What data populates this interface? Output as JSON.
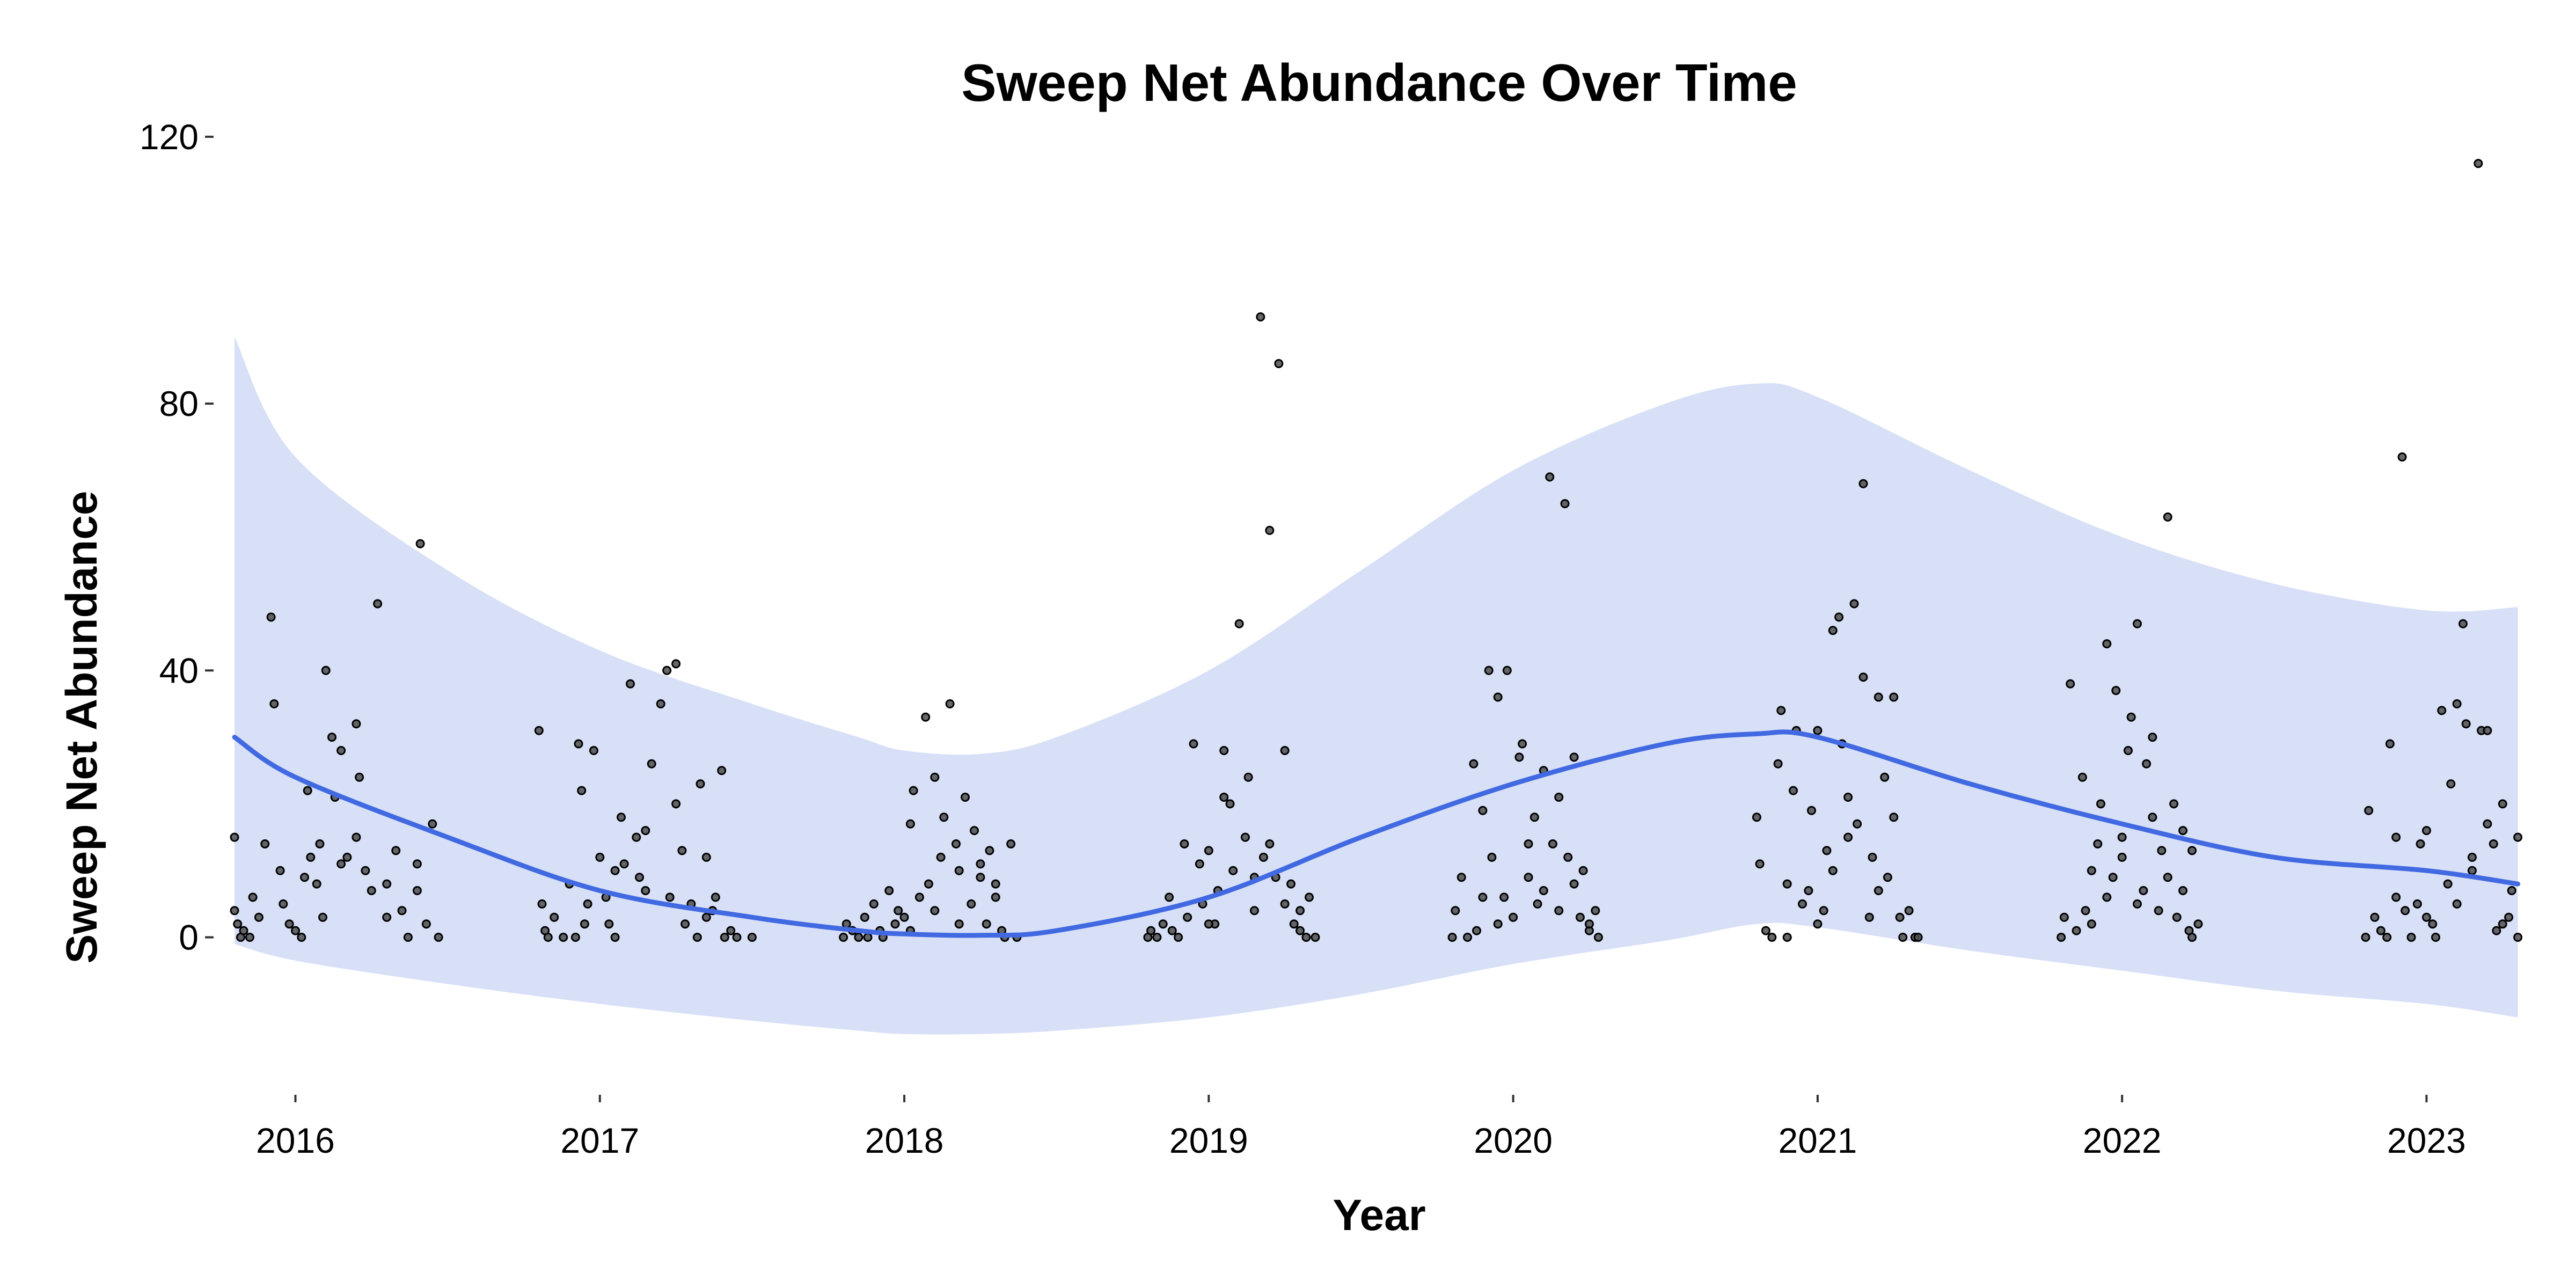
{
  "chart_data": {
    "type": "scatter",
    "title": "Sweep Net Abundance Over Time",
    "xlabel": "Year",
    "ylabel": "Sweep Net Abundance",
    "xlim": [
      2015.77,
      2023.35
    ],
    "ylim": [
      -22,
      122
    ],
    "x_ticks": [
      {
        "value": 2016,
        "label": "2016"
      },
      {
        "value": 2017,
        "label": "2017"
      },
      {
        "value": 2018,
        "label": "2018"
      },
      {
        "value": 2019,
        "label": "2019"
      },
      {
        "value": 2020,
        "label": "2020"
      },
      {
        "value": 2021,
        "label": "2021"
      },
      {
        "value": 2022,
        "label": "2022"
      },
      {
        "value": 2023,
        "label": "2023"
      }
    ],
    "y_ticks": [
      {
        "value": 0,
        "label": "0"
      },
      {
        "value": 40,
        "label": "40"
      },
      {
        "value": 80,
        "label": "80"
      },
      {
        "value": 120,
        "label": "120"
      }
    ],
    "grid": false,
    "legend": "none",
    "colors": {
      "point_fill": "#4d4d4d",
      "point_stroke": "#000000",
      "smooth_line": "#4169e1",
      "ribbon": "#d8e0f7"
    },
    "smooth": {
      "x": [
        2015.8,
        2016.0,
        2016.5,
        2017.0,
        2017.5,
        2017.85,
        2018.0,
        2018.25,
        2018.5,
        2019.0,
        2019.5,
        2020.0,
        2020.5,
        2020.8,
        2021.0,
        2021.5,
        2022.0,
        2022.5,
        2023.0,
        2023.3
      ],
      "y": [
        30,
        24,
        15,
        7,
        3,
        1,
        0.5,
        0.3,
        1,
        6,
        15,
        23,
        29,
        30.5,
        30,
        23,
        17,
        12,
        10,
        8
      ],
      "upper": [
        90,
        72,
        55,
        43,
        35,
        30,
        28,
        27.5,
        30,
        40,
        55,
        70,
        80,
        83,
        81,
        70,
        60,
        53,
        49,
        49.5
      ],
      "lower": [
        -1,
        -3.5,
        -7,
        -10,
        -12.5,
        -14,
        -14.5,
        -14.5,
        -14,
        -12,
        -8.5,
        -4,
        -0.5,
        2,
        1.5,
        -2,
        -5,
        -8,
        -10,
        -12
      ]
    },
    "points": [
      [
        2015.8,
        15
      ],
      [
        2015.8,
        4
      ],
      [
        2015.81,
        2
      ],
      [
        2015.82,
        0
      ],
      [
        2015.83,
        1
      ],
      [
        2015.85,
        0
      ],
      [
        2015.86,
        6
      ],
      [
        2015.88,
        3
      ],
      [
        2015.9,
        14
      ],
      [
        2015.92,
        48
      ],
      [
        2015.93,
        35
      ],
      [
        2015.95,
        10
      ],
      [
        2015.96,
        5
      ],
      [
        2015.98,
        2
      ],
      [
        2016.0,
        1
      ],
      [
        2016.02,
        0
      ],
      [
        2016.04,
        22
      ],
      [
        2016.05,
        12
      ],
      [
        2016.07,
        8
      ],
      [
        2016.08,
        14
      ],
      [
        2016.1,
        40
      ],
      [
        2016.12,
        30
      ],
      [
        2016.13,
        21
      ],
      [
        2016.15,
        28
      ],
      [
        2016.17,
        12
      ],
      [
        2016.2,
        32
      ],
      [
        2016.21,
        24
      ],
      [
        2016.23,
        10
      ],
      [
        2016.27,
        50
      ],
      [
        2016.3,
        8
      ],
      [
        2016.33,
        13
      ],
      [
        2016.35,
        4
      ],
      [
        2016.37,
        0
      ],
      [
        2016.4,
        11
      ],
      [
        2016.41,
        59
      ],
      [
        2016.43,
        2
      ],
      [
        2016.45,
        17
      ],
      [
        2016.47,
        0
      ],
      [
        2016.03,
        9
      ],
      [
        2016.09,
        3
      ],
      [
        2016.15,
        11
      ],
      [
        2016.2,
        15
      ],
      [
        2016.25,
        7
      ],
      [
        2016.3,
        3
      ],
      [
        2016.4,
        7
      ],
      [
        2016.8,
        31
      ],
      [
        2016.81,
        5
      ],
      [
        2016.82,
        1
      ],
      [
        2016.83,
        0
      ],
      [
        2016.85,
        3
      ],
      [
        2016.88,
        0
      ],
      [
        2016.9,
        8
      ],
      [
        2016.92,
        0
      ],
      [
        2016.93,
        29
      ],
      [
        2016.94,
        22
      ],
      [
        2016.96,
        5
      ],
      [
        2016.98,
        28
      ],
      [
        2017.0,
        12
      ],
      [
        2017.02,
        6
      ],
      [
        2017.03,
        2
      ],
      [
        2017.05,
        0
      ],
      [
        2017.07,
        18
      ],
      [
        2017.08,
        11
      ],
      [
        2017.1,
        38
      ],
      [
        2017.12,
        15
      ],
      [
        2017.13,
        9
      ],
      [
        2017.15,
        7
      ],
      [
        2017.17,
        26
      ],
      [
        2017.2,
        35
      ],
      [
        2017.22,
        40
      ],
      [
        2017.23,
        6
      ],
      [
        2017.25,
        41
      ],
      [
        2017.27,
        13
      ],
      [
        2017.28,
        2
      ],
      [
        2017.3,
        5
      ],
      [
        2017.32,
        0
      ],
      [
        2017.33,
        23
      ],
      [
        2017.35,
        12
      ],
      [
        2017.37,
        4
      ],
      [
        2017.38,
        6
      ],
      [
        2017.4,
        25
      ],
      [
        2017.41,
        0
      ],
      [
        2017.45,
        0
      ],
      [
        2017.5,
        0
      ],
      [
        2016.95,
        2
      ],
      [
        2017.05,
        10
      ],
      [
        2017.15,
        16
      ],
      [
        2017.25,
        20
      ],
      [
        2017.35,
        3
      ],
      [
        2017.43,
        1
      ],
      [
        2017.8,
        0
      ],
      [
        2017.81,
        2
      ],
      [
        2017.83,
        1
      ],
      [
        2017.85,
        0
      ],
      [
        2017.87,
        3
      ],
      [
        2017.88,
        0
      ],
      [
        2017.9,
        5
      ],
      [
        2017.92,
        1
      ],
      [
        2017.93,
        0
      ],
      [
        2017.95,
        7
      ],
      [
        2017.97,
        2
      ],
      [
        2017.98,
        4
      ],
      [
        2018.0,
        3
      ],
      [
        2018.02,
        1
      ],
      [
        2018.03,
        22
      ],
      [
        2018.05,
        6
      ],
      [
        2018.07,
        33
      ],
      [
        2018.08,
        8
      ],
      [
        2018.1,
        24
      ],
      [
        2018.12,
        12
      ],
      [
        2018.13,
        18
      ],
      [
        2018.15,
        35
      ],
      [
        2018.17,
        14
      ],
      [
        2018.18,
        10
      ],
      [
        2018.2,
        21
      ],
      [
        2018.22,
        5
      ],
      [
        2018.23,
        16
      ],
      [
        2018.25,
        9
      ],
      [
        2018.27,
        2
      ],
      [
        2018.28,
        13
      ],
      [
        2018.3,
        6
      ],
      [
        2018.32,
        1
      ],
      [
        2018.33,
        0
      ],
      [
        2018.35,
        14
      ],
      [
        2018.37,
        0
      ],
      [
        2018.02,
        17
      ],
      [
        2018.1,
        4
      ],
      [
        2018.18,
        2
      ],
      [
        2018.25,
        11
      ],
      [
        2018.3,
        8
      ],
      [
        2018.8,
        0
      ],
      [
        2018.81,
        1
      ],
      [
        2018.83,
        0
      ],
      [
        2018.85,
        2
      ],
      [
        2018.87,
        6
      ],
      [
        2018.88,
        1
      ],
      [
        2018.9,
        0
      ],
      [
        2018.92,
        14
      ],
      [
        2018.93,
        3
      ],
      [
        2018.95,
        29
      ],
      [
        2018.97,
        11
      ],
      [
        2018.98,
        5
      ],
      [
        2019.0,
        13
      ],
      [
        2019.02,
        2
      ],
      [
        2019.03,
        7
      ],
      [
        2019.05,
        21
      ],
      [
        2019.07,
        20
      ],
      [
        2019.08,
        10
      ],
      [
        2019.1,
        47
      ],
      [
        2019.12,
        15
      ],
      [
        2019.13,
        24
      ],
      [
        2019.15,
        4
      ],
      [
        2019.17,
        93
      ],
      [
        2019.18,
        12
      ],
      [
        2019.2,
        61
      ],
      [
        2019.22,
        9
      ],
      [
        2019.23,
        86
      ],
      [
        2019.25,
        28
      ],
      [
        2019.27,
        8
      ],
      [
        2019.28,
        2
      ],
      [
        2019.3,
        4
      ],
      [
        2019.32,
        0
      ],
      [
        2019.33,
        6
      ],
      [
        2019.35,
        0
      ],
      [
        2019.0,
        2
      ],
      [
        2019.05,
        28
      ],
      [
        2019.15,
        9
      ],
      [
        2019.2,
        14
      ],
      [
        2019.25,
        5
      ],
      [
        2019.3,
        1
      ],
      [
        2019.8,
        0
      ],
      [
        2019.81,
        4
      ],
      [
        2019.83,
        9
      ],
      [
        2019.85,
        0
      ],
      [
        2019.87,
        26
      ],
      [
        2019.88,
        1
      ],
      [
        2019.9,
        19
      ],
      [
        2019.92,
        40
      ],
      [
        2019.93,
        12
      ],
      [
        2019.95,
        36
      ],
      [
        2019.97,
        6
      ],
      [
        2019.98,
        40
      ],
      [
        2020.0,
        3
      ],
      [
        2020.02,
        27
      ],
      [
        2020.03,
        29
      ],
      [
        2020.05,
        9
      ],
      [
        2020.07,
        18
      ],
      [
        2020.08,
        5
      ],
      [
        2020.1,
        25
      ],
      [
        2020.12,
        69
      ],
      [
        2020.13,
        14
      ],
      [
        2020.15,
        4
      ],
      [
        2020.17,
        65
      ],
      [
        2020.18,
        12
      ],
      [
        2020.2,
        27
      ],
      [
        2020.22,
        3
      ],
      [
        2020.23,
        10
      ],
      [
        2020.25,
        1
      ],
      [
        2020.27,
        4
      ],
      [
        2020.28,
        0
      ],
      [
        2019.9,
        6
      ],
      [
        2019.95,
        2
      ],
      [
        2020.05,
        14
      ],
      [
        2020.1,
        7
      ],
      [
        2020.15,
        21
      ],
      [
        2020.2,
        8
      ],
      [
        2020.25,
        2
      ],
      [
        2020.8,
        18
      ],
      [
        2020.81,
        11
      ],
      [
        2020.83,
        1
      ],
      [
        2020.85,
        0
      ],
      [
        2020.87,
        26
      ],
      [
        2020.88,
        34
      ],
      [
        2020.9,
        0
      ],
      [
        2020.92,
        22
      ],
      [
        2020.93,
        31
      ],
      [
        2020.95,
        5
      ],
      [
        2020.97,
        7
      ],
      [
        2020.98,
        19
      ],
      [
        2021.0,
        31
      ],
      [
        2021.02,
        4
      ],
      [
        2021.03,
        13
      ],
      [
        2021.05,
        46
      ],
      [
        2021.07,
        48
      ],
      [
        2021.08,
        29
      ],
      [
        2021.1,
        21
      ],
      [
        2021.12,
        50
      ],
      [
        2021.13,
        17
      ],
      [
        2021.15,
        68
      ],
      [
        2021.17,
        3
      ],
      [
        2021.18,
        12
      ],
      [
        2021.2,
        36
      ],
      [
        2021.22,
        24
      ],
      [
        2021.23,
        9
      ],
      [
        2021.25,
        36
      ],
      [
        2021.27,
        3
      ],
      [
        2021.28,
        0
      ],
      [
        2021.3,
        4
      ],
      [
        2021.32,
        0
      ],
      [
        2021.33,
        0
      ],
      [
        2020.9,
        8
      ],
      [
        2021.0,
        2
      ],
      [
        2021.05,
        10
      ],
      [
        2021.1,
        15
      ],
      [
        2021.15,
        39
      ],
      [
        2021.2,
        7
      ],
      [
        2021.25,
        18
      ],
      [
        2021.8,
        0
      ],
      [
        2021.81,
        3
      ],
      [
        2021.83,
        38
      ],
      [
        2021.85,
        1
      ],
      [
        2021.87,
        24
      ],
      [
        2021.88,
        4
      ],
      [
        2021.9,
        10
      ],
      [
        2021.92,
        14
      ],
      [
        2021.93,
        20
      ],
      [
        2021.95,
        44
      ],
      [
        2021.97,
        9
      ],
      [
        2021.98,
        37
      ],
      [
        2022.0,
        12
      ],
      [
        2022.02,
        28
      ],
      [
        2022.03,
        33
      ],
      [
        2022.05,
        47
      ],
      [
        2022.07,
        7
      ],
      [
        2022.08,
        26
      ],
      [
        2022.1,
        30
      ],
      [
        2022.12,
        4
      ],
      [
        2022.13,
        13
      ],
      [
        2022.15,
        63
      ],
      [
        2022.17,
        20
      ],
      [
        2022.18,
        3
      ],
      [
        2022.2,
        16
      ],
      [
        2022.22,
        1
      ],
      [
        2022.23,
        0
      ],
      [
        2022.25,
        2
      ],
      [
        2021.9,
        2
      ],
      [
        2021.95,
        6
      ],
      [
        2022.0,
        15
      ],
      [
        2022.05,
        5
      ],
      [
        2022.1,
        18
      ],
      [
        2022.15,
        9
      ],
      [
        2022.2,
        7
      ],
      [
        2022.23,
        13
      ],
      [
        2022.8,
        0
      ],
      [
        2022.81,
        19
      ],
      [
        2022.83,
        3
      ],
      [
        2022.85,
        1
      ],
      [
        2022.87,
        0
      ],
      [
        2022.88,
        29
      ],
      [
        2022.9,
        6
      ],
      [
        2022.92,
        72
      ],
      [
        2022.93,
        4
      ],
      [
        2022.95,
        0
      ],
      [
        2022.97,
        5
      ],
      [
        2022.98,
        14
      ],
      [
        2023.0,
        16
      ],
      [
        2023.02,
        2
      ],
      [
        2023.03,
        0
      ],
      [
        2023.05,
        34
      ],
      [
        2023.07,
        8
      ],
      [
        2023.08,
        23
      ],
      [
        2023.1,
        35
      ],
      [
        2023.12,
        47
      ],
      [
        2023.13,
        32
      ],
      [
        2023.15,
        12
      ],
      [
        2023.17,
        116
      ],
      [
        2023.18,
        31
      ],
      [
        2023.2,
        31
      ],
      [
        2023.22,
        14
      ],
      [
        2023.23,
        1
      ],
      [
        2023.25,
        20
      ],
      [
        2023.27,
        3
      ],
      [
        2023.28,
        7
      ],
      [
        2023.3,
        15
      ],
      [
        2023.3,
        0
      ],
      [
        2022.9,
        15
      ],
      [
        2023.0,
        3
      ],
      [
        2023.1,
        5
      ],
      [
        2023.15,
        10
      ],
      [
        2023.2,
        17
      ],
      [
        2023.25,
        2
      ]
    ]
  }
}
